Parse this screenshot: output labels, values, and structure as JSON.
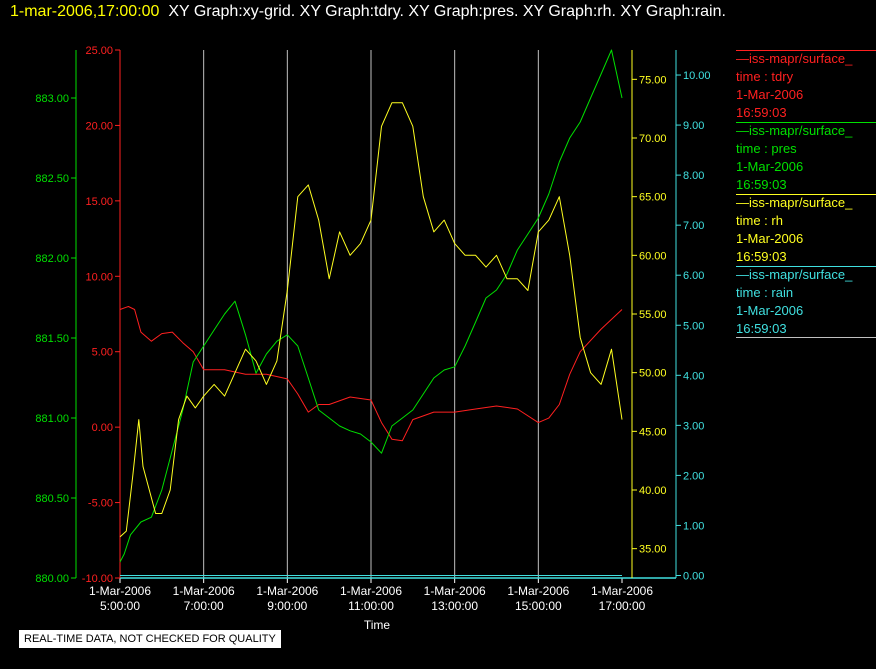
{
  "header": {
    "timestamp": "1-mar-2006,17:00:00",
    "graphs": "XY Graph:xy-grid.  XY Graph:tdry.  XY Graph:pres.  XY Graph:rh.  XY Graph:rain."
  },
  "colors": {
    "background": "#000000",
    "grid": "#c0c0c0",
    "tdry": "#ff2020",
    "pres": "#00e000",
    "rh": "#ffff20",
    "rain": "#40e0e0"
  },
  "legend": [
    {
      "series_label": "—iss-mapr/surface_",
      "field": "time : tdry",
      "date": "1-Mar-2006",
      "time": "16:59:03",
      "color": "#ff2020"
    },
    {
      "series_label": "—iss-mapr/surface_",
      "field": "time : pres",
      "date": "1-Mar-2006",
      "time": "16:59:03",
      "color": "#00e000"
    },
    {
      "series_label": "—iss-mapr/surface_",
      "field": "time : rh",
      "date": "1-Mar-2006",
      "time": "16:59:03",
      "color": "#ffff20"
    },
    {
      "series_label": "—iss-mapr/surface_",
      "field": "time : rain",
      "date": "1-Mar-2006",
      "time": "16:59:03",
      "color": "#40e0e0"
    }
  ],
  "notice": "REAL-TIME DATA, NOT CHECKED FOR QUALITY",
  "chart_data": {
    "type": "line",
    "xlabel": "Time",
    "xlim": [
      5,
      17
    ],
    "x_ticks": [
      {
        "value": 5,
        "date": "1-Mar-2006",
        "time": "5:00:00"
      },
      {
        "value": 7,
        "date": "1-Mar-2006",
        "time": "7:00:00"
      },
      {
        "value": 9,
        "date": "1-Mar-2006",
        "time": "9:00:00"
      },
      {
        "value": 11,
        "date": "1-Mar-2006",
        "time": "11:00:00"
      },
      {
        "value": 13,
        "date": "1-Mar-2006",
        "time": "13:00:00"
      },
      {
        "value": 15,
        "date": "1-Mar-2006",
        "time": "15:00:00"
      },
      {
        "value": 17,
        "date": "1-Mar-2006",
        "time": "17:00:00"
      }
    ],
    "grid": "vertical",
    "axes": {
      "pres": {
        "range": [
          880.0,
          883.3
        ],
        "ticks": [
          "880.00",
          "880.50",
          "881.00",
          "881.50",
          "882.00",
          "882.50",
          "883.00"
        ]
      },
      "tdry": {
        "range": [
          -10.0,
          25.0
        ],
        "ticks": [
          "-10.00",
          "-5.00",
          "0.00",
          "5.00",
          "10.00",
          "15.00",
          "20.00",
          "25.00"
        ]
      },
      "rh": {
        "range": [
          32.5,
          77.5
        ],
        "ticks": [
          "35.00",
          "40.00",
          "45.00",
          "50.00",
          "55.00",
          "60.00",
          "65.00",
          "70.00",
          "75.00"
        ]
      },
      "rain": {
        "range": [
          -0.05,
          10.5
        ],
        "ticks": [
          "0.00",
          "1.00",
          "2.00",
          "3.00",
          "4.00",
          "5.00",
          "6.00",
          "7.00",
          "8.00",
          "9.00",
          "10.00"
        ]
      }
    },
    "series": [
      {
        "name": "tdry",
        "axis": "tdry",
        "x": [
          5.0,
          5.2,
          5.35,
          5.5,
          5.75,
          6.0,
          6.25,
          6.5,
          6.75,
          7.0,
          7.5,
          8.0,
          8.5,
          9.0,
          9.25,
          9.5,
          9.75,
          10.0,
          10.5,
          11.0,
          11.25,
          11.5,
          11.75,
          12.0,
          12.5,
          13.0,
          13.5,
          14.0,
          14.5,
          15.0,
          15.25,
          15.5,
          15.75,
          16.0,
          16.5,
          17.0
        ],
        "values": [
          7.8,
          8.0,
          7.8,
          6.3,
          5.7,
          6.2,
          6.3,
          5.6,
          5.0,
          3.8,
          3.8,
          3.5,
          3.5,
          3.2,
          2.2,
          1.0,
          1.5,
          1.5,
          2.0,
          1.8,
          0.3,
          -0.8,
          -0.9,
          0.5,
          1.0,
          1.0,
          1.2,
          1.4,
          1.2,
          0.3,
          0.6,
          1.5,
          3.5,
          5.0,
          6.5,
          7.8
        ]
      },
      {
        "name": "pres",
        "axis": "pres",
        "x": [
          5.0,
          5.1,
          5.25,
          5.5,
          5.75,
          6.0,
          6.25,
          6.5,
          6.75,
          7.0,
          7.25,
          7.5,
          7.75,
          8.0,
          8.25,
          8.5,
          8.75,
          9.0,
          9.25,
          9.5,
          9.75,
          10.0,
          10.25,
          10.5,
          10.75,
          11.0,
          11.25,
          11.5,
          11.75,
          12.0,
          12.25,
          12.5,
          12.75,
          13.0,
          13.25,
          13.5,
          13.75,
          14.0,
          14.25,
          14.5,
          14.75,
          15.0,
          15.25,
          15.5,
          15.75,
          16.0,
          16.25,
          16.5,
          16.75,
          17.0
        ],
        "values": [
          880.1,
          880.15,
          880.27,
          880.35,
          880.38,
          880.55,
          880.8,
          881.05,
          881.35,
          881.45,
          881.55,
          881.65,
          881.73,
          881.52,
          881.28,
          881.4,
          881.48,
          881.52,
          881.45,
          881.25,
          881.05,
          881.0,
          880.95,
          880.92,
          880.9,
          880.85,
          880.78,
          880.95,
          881.0,
          881.05,
          881.15,
          881.25,
          881.3,
          881.32,
          881.45,
          881.6,
          881.75,
          881.8,
          881.9,
          882.05,
          882.15,
          882.25,
          882.4,
          882.6,
          882.75,
          882.85,
          883.0,
          883.15,
          883.3,
          883.0
        ]
      },
      {
        "name": "rh",
        "axis": "rh",
        "x": [
          5.0,
          5.15,
          5.3,
          5.45,
          5.55,
          5.7,
          5.85,
          6.0,
          6.2,
          6.4,
          6.6,
          6.8,
          7.0,
          7.25,
          7.5,
          7.75,
          8.0,
          8.25,
          8.5,
          8.75,
          9.0,
          9.25,
          9.5,
          9.75,
          10.0,
          10.25,
          10.5,
          10.75,
          11.0,
          11.25,
          11.5,
          11.75,
          12.0,
          12.25,
          12.5,
          12.75,
          13.0,
          13.25,
          13.5,
          13.75,
          14.0,
          14.25,
          14.5,
          14.75,
          15.0,
          15.25,
          15.5,
          15.75,
          16.0,
          16.25,
          16.5,
          16.75,
          17.0
        ],
        "values": [
          36,
          36.5,
          41,
          46,
          42,
          40,
          38,
          38,
          40,
          46,
          48,
          47,
          48,
          49,
          48,
          50,
          52,
          51,
          49,
          51,
          57,
          65,
          66,
          63,
          58,
          62,
          60,
          61,
          63,
          71,
          73,
          73,
          71,
          65,
          62,
          63,
          61,
          60,
          60,
          59,
          60,
          58,
          58,
          57,
          62,
          63,
          65,
          60,
          53,
          50,
          49,
          52,
          46
        ]
      },
      {
        "name": "rain",
        "axis": "rain",
        "x": [
          5.0,
          17.0
        ],
        "values": [
          0.0,
          0.0
        ]
      }
    ]
  }
}
